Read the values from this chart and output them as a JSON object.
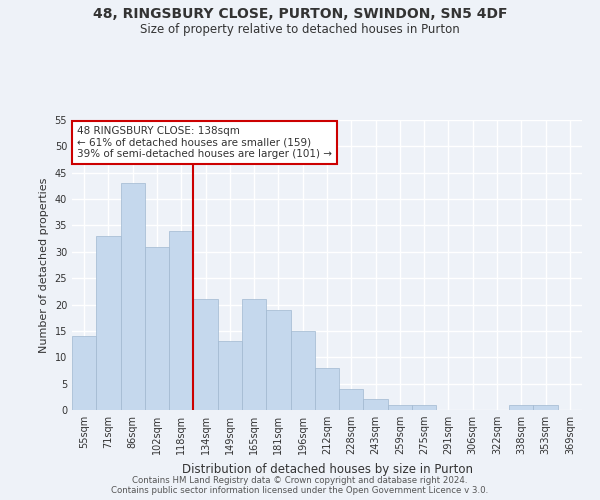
{
  "title": "48, RINGSBURY CLOSE, PURTON, SWINDON, SN5 4DF",
  "subtitle": "Size of property relative to detached houses in Purton",
  "xlabel": "Distribution of detached houses by size in Purton",
  "ylabel": "Number of detached properties",
  "categories": [
    "55sqm",
    "71sqm",
    "86sqm",
    "102sqm",
    "118sqm",
    "134sqm",
    "149sqm",
    "165sqm",
    "181sqm",
    "196sqm",
    "212sqm",
    "228sqm",
    "243sqm",
    "259sqm",
    "275sqm",
    "291sqm",
    "306sqm",
    "322sqm",
    "338sqm",
    "353sqm",
    "369sqm"
  ],
  "values": [
    14,
    33,
    43,
    31,
    34,
    21,
    13,
    21,
    19,
    15,
    8,
    4,
    2,
    1,
    1,
    0,
    0,
    0,
    1,
    1,
    0
  ],
  "bar_color": "#c5d8ed",
  "bar_edge_color": "#a0b8d0",
  "highlight_line_color": "#cc0000",
  "annotation_title": "48 RINGSBURY CLOSE: 138sqm",
  "annotation_line2": "← 61% of detached houses are smaller (159)",
  "annotation_line3": "39% of semi-detached houses are larger (101) →",
  "annotation_box_color": "#ffffff",
  "annotation_box_edge": "#cc0000",
  "footer1": "Contains HM Land Registry data © Crown copyright and database right 2024.",
  "footer2": "Contains public sector information licensed under the Open Government Licence v 3.0.",
  "ylim": [
    0,
    55
  ],
  "background_color": "#eef2f8",
  "grid_color": "#ffffff",
  "text_color": "#333333"
}
